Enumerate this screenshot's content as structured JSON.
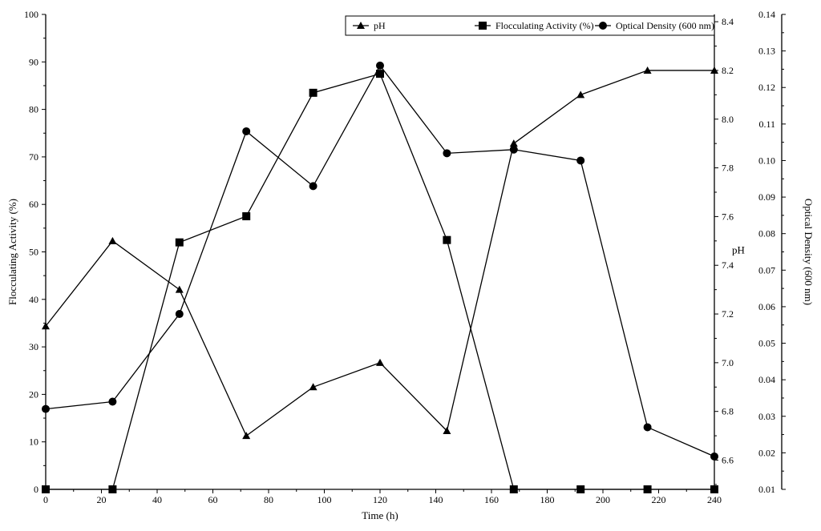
{
  "chart_data": {
    "type": "line",
    "xlabel": "Time (h)",
    "ylabel_left": "Flocculating Activity (%)",
    "ylabel_mid": "pH",
    "ylabel_right": "Optical Density (600 nm)",
    "xlim": [
      0,
      240
    ],
    "ylim_left": [
      0,
      100
    ],
    "ylim_mid": [
      6.48,
      8.43
    ],
    "ylim_right": [
      0.01,
      0.14
    ],
    "x_ticks": [
      0,
      20,
      40,
      60,
      80,
      100,
      120,
      140,
      160,
      180,
      200,
      220,
      240
    ],
    "x_tick_labels": [
      "0",
      "20",
      "40",
      "60",
      "80",
      "100",
      "120",
      "140",
      "160",
      "180",
      "200",
      "220",
      "240"
    ],
    "left_ticks": [
      0,
      10,
      20,
      30,
      40,
      50,
      60,
      70,
      80,
      90,
      100
    ],
    "left_tick_labels": [
      "0",
      "10",
      "20",
      "30",
      "40",
      "50",
      "60",
      "70",
      "80",
      "90",
      "100"
    ],
    "mid_ticks": [
      6.6,
      6.8,
      7.0,
      7.2,
      7.4,
      7.6,
      7.8,
      8.0,
      8.2,
      8.4
    ],
    "mid_tick_labels": [
      "6.6",
      "6.8",
      "7.0",
      "7.2",
      "7.4",
      "7.6",
      "7.8",
      "8.0",
      "8.2",
      "8.4"
    ],
    "right_ticks": [
      0.01,
      0.02,
      0.03,
      0.04,
      0.05,
      0.06,
      0.07,
      0.08,
      0.09,
      0.1,
      0.11,
      0.12,
      0.13,
      0.14
    ],
    "right_tick_labels": [
      "0.01",
      "0.02",
      "0.03",
      "0.04",
      "0.05",
      "0.06",
      "0.07",
      "0.08",
      "0.09",
      "0.10",
      "0.11",
      "0.12",
      "0.13",
      "0.14"
    ],
    "legend_position": "top-right",
    "grid": false,
    "series": [
      {
        "name": "pH",
        "axis": "mid",
        "marker": "triangle",
        "x": [
          0,
          24,
          48,
          72,
          96,
          120,
          144,
          168,
          192,
          216,
          240
        ],
        "y": [
          7.15,
          7.5,
          7.3,
          6.7,
          6.9,
          7.0,
          6.72,
          7.9,
          8.1,
          8.2,
          8.2
        ]
      },
      {
        "name": "Flocculating Activity (%)",
        "axis": "left",
        "marker": "square",
        "x": [
          0,
          24,
          48,
          72,
          96,
          120,
          144,
          168,
          192,
          216,
          240
        ],
        "y": [
          0,
          0,
          52,
          57.5,
          83.5,
          87.5,
          52.5,
          0,
          0,
          0,
          0
        ]
      },
      {
        "name": "Optical Density (600 nm)",
        "axis": "right",
        "marker": "circle",
        "x": [
          0,
          24,
          48,
          72,
          96,
          120,
          144,
          168,
          192,
          216,
          240
        ],
        "y": [
          0.032,
          0.034,
          0.058,
          0.108,
          0.093,
          0.126,
          0.102,
          0.103,
          0.1,
          0.027,
          0.019
        ]
      }
    ]
  }
}
